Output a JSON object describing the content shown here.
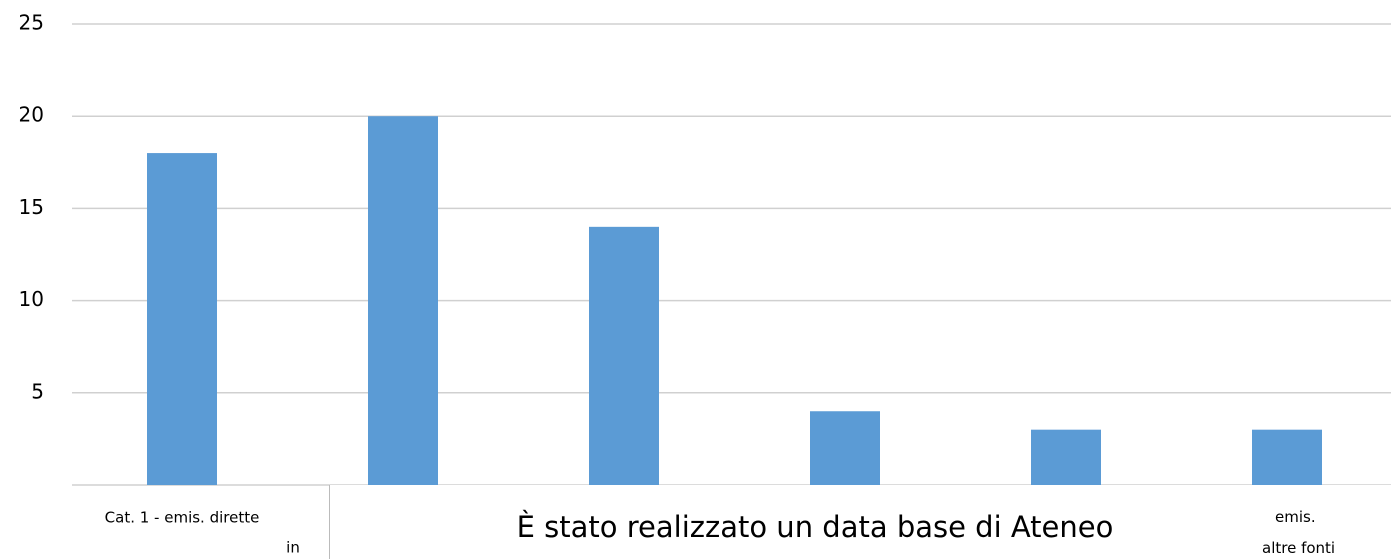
{
  "chart_data": {
    "type": "bar",
    "categories": [
      "Cat. 1 - emis. dirette",
      "in",
      null,
      null,
      null,
      "emis. altre fonti"
    ],
    "values": [
      18,
      20,
      14,
      4,
      3,
      3
    ],
    "color": "#5b9bd5",
    "ylim": [
      0,
      25
    ],
    "yticks": [
      5,
      10,
      15,
      20,
      25
    ],
    "grid": true
  },
  "overlay": {
    "text": "È stato realizzato un data base di Ateneo"
  }
}
